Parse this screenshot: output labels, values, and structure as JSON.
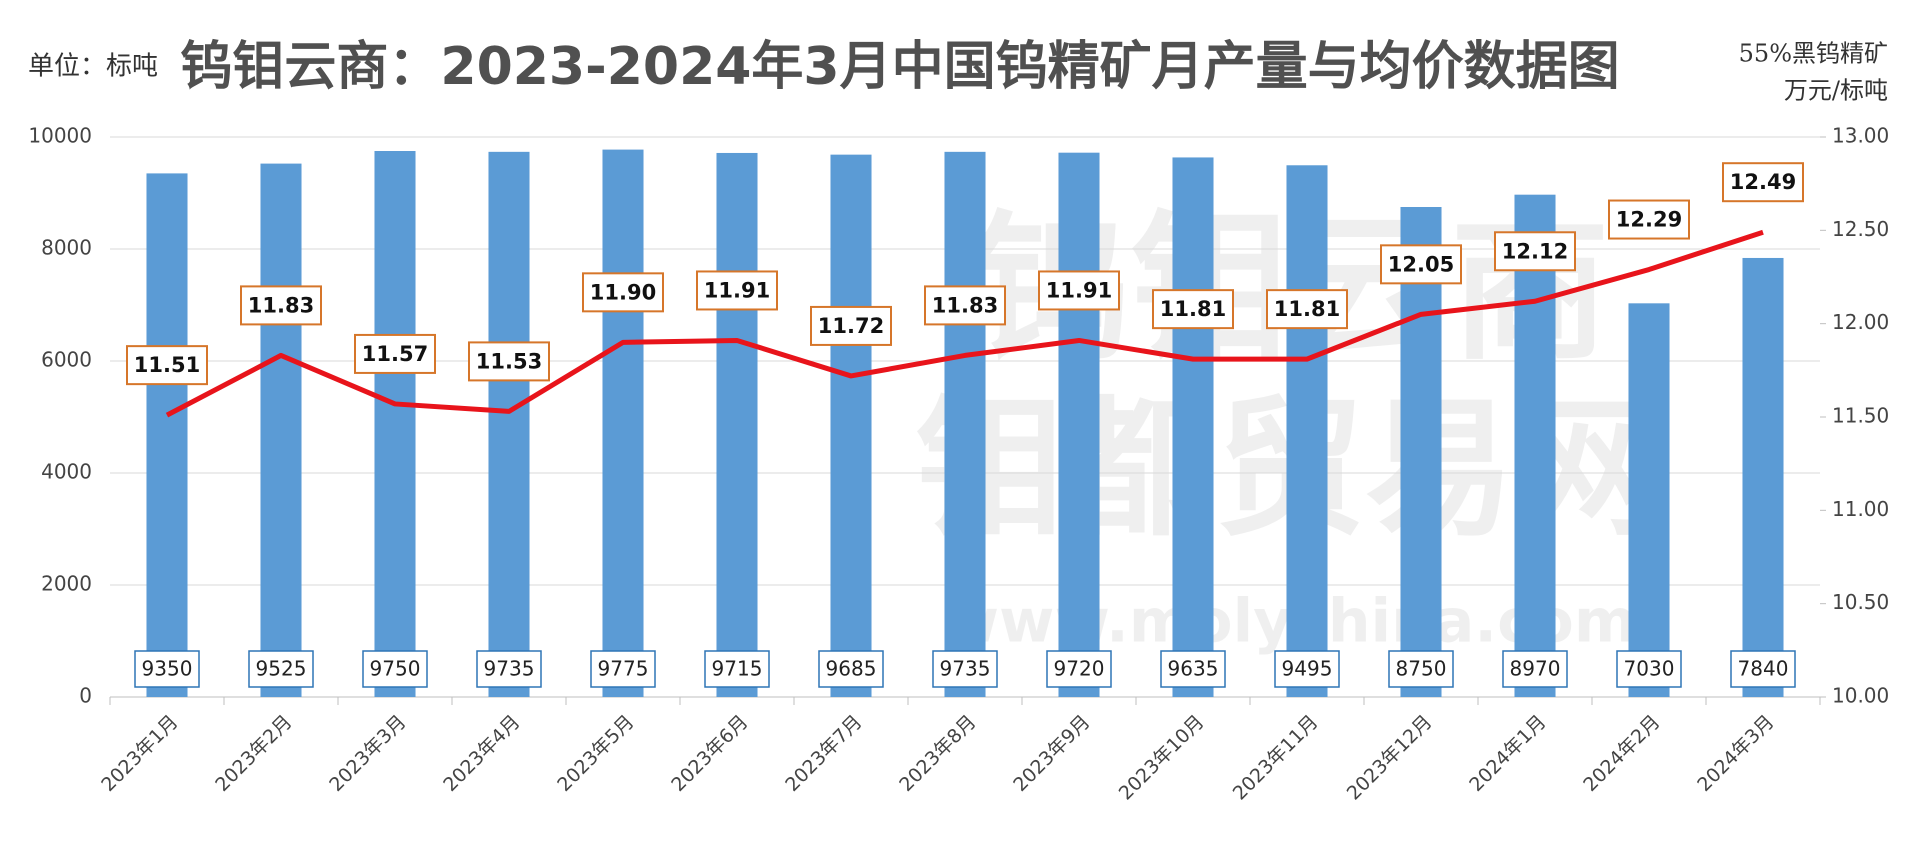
{
  "chart_data": {
    "type": "bar_line",
    "title": "钨钼云商：2023-2024年3月中国钨精矿月产量与均价数据图",
    "y_label": "单位：标吨",
    "y2_label": [
      "55%黑钨精矿",
      "万元/标吨"
    ],
    "watermark": [
      "钨钼云商",
      "钼都贸易网",
      "www.molychina.com"
    ],
    "categories": [
      "2023年1月",
      "2023年2月",
      "2023年3月",
      "2023年4月",
      "2023年5月",
      "2023年6月",
      "2023年7月",
      "2023年8月",
      "2023年9月",
      "2023年10月",
      "2023年11月",
      "2023年12月",
      "2024年1月",
      "2024年2月",
      "2024年3月"
    ],
    "series": [
      {
        "type": "bar",
        "color": "#5b9bd5",
        "values": [
          9350,
          9525,
          9750,
          9735,
          9775,
          9715,
          9685,
          9735,
          9720,
          9635,
          9495,
          8750,
          8970,
          7030,
          7840
        ]
      },
      {
        "type": "line",
        "axis": "y2",
        "color": "#e8141b",
        "values": [
          11.51,
          11.83,
          11.57,
          11.53,
          11.9,
          11.91,
          11.72,
          11.83,
          11.91,
          11.81,
          11.81,
          12.05,
          12.12,
          12.29,
          12.49
        ],
        "value_labels": [
          "11.51",
          "11.83",
          "11.57",
          "11.53",
          "11.90",
          "11.91",
          "11.72",
          "11.83",
          "11.91",
          "11.81",
          "11.81",
          "12.05",
          "12.12",
          "12.29",
          "12.49"
        ]
      }
    ],
    "ylim": [
      0,
      10000
    ],
    "yticks": [
      0,
      2000,
      4000,
      6000,
      8000,
      10000
    ],
    "y2lim": [
      10,
      13
    ],
    "y2ticks": [
      {
        "value": 10,
        "label": "10.00"
      },
      {
        "value": 10.5,
        "label": "10.50"
      },
      {
        "value": 11,
        "label": "11.00"
      },
      {
        "value": 11.5,
        "label": "11.50"
      },
      {
        "value": 12,
        "label": "12.00"
      },
      {
        "value": 12.5,
        "label": "12.50"
      },
      {
        "value": 13,
        "label": "13.00"
      }
    ]
  }
}
